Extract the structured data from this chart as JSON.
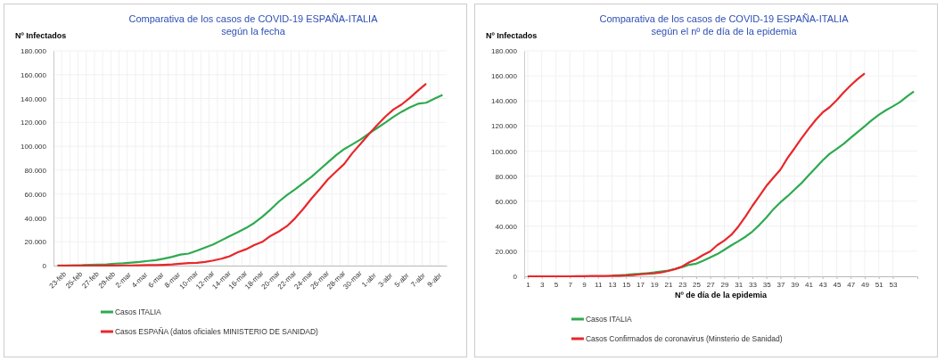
{
  "chart_data": [
    {
      "type": "line",
      "title": "Comparativa de los casos de COVID-19 ESPAÑA-ITALIA",
      "subtitle": "según la fecha",
      "ylabel": "Nº Infectados",
      "categories": [
        "23-feb",
        null,
        "25-feb",
        null,
        "27-feb",
        null,
        "29-feb",
        null,
        "2-mar",
        null,
        "4-mar",
        null,
        "6-mar",
        null,
        "8-mar",
        null,
        "10-mar",
        null,
        "12-mar",
        null,
        "14-mar",
        null,
        "16-mar",
        null,
        "18-mar",
        null,
        "20-mar",
        null,
        "22-mar",
        null,
        "24-mar",
        null,
        "26-mar",
        null,
        "28-mar",
        null,
        "30-mar",
        null,
        "1-abr",
        null,
        "3-abr",
        null,
        "5-abr",
        null,
        "7-abr",
        null,
        "9-abr",
        null
      ],
      "series": [
        {
          "name": "Casos ITALIA",
          "color": "#2eaa4f",
          "values": [
            200,
            200,
            300,
            400,
            700,
            900,
            1100,
            1700,
            2000,
            2500,
            3100,
            3900,
            4600,
            5900,
            7400,
            9200,
            10100,
            12500,
            15100,
            17700,
            21200,
            24700,
            28000,
            31500,
            35700,
            41000,
            47000,
            53600,
            59100,
            63900,
            69200,
            74400,
            80500,
            86500,
            92500,
            97700,
            101700,
            105800,
            110600,
            115200,
            119800,
            124600,
            128900,
            132500,
            135600,
            136500,
            139800,
            143000
          ]
        },
        {
          "name": "Casos ESPAÑA (datos oficiales MINISTERIO DE SANIDAD)",
          "color": "#e8272a",
          "values": [
            0,
            0,
            0,
            0,
            0,
            0,
            100,
            100,
            200,
            200,
            300,
            400,
            500,
            700,
            1000,
            1600,
            2100,
            2300,
            3100,
            4300,
            5800,
            7800,
            11200,
            13700,
            17100,
            19900,
            24900,
            28600,
            33100,
            39700,
            47600,
            56200,
            64100,
            72200,
            78800,
            85200,
            94400,
            102100,
            110200,
            117700,
            124700,
            130800,
            135000,
            140500,
            146700,
            152400,
            null,
            null
          ]
        }
      ],
      "ylim": [
        0,
        180000
      ],
      "yticks": [
        0,
        {
          "value": 20000,
          "label": "20.000"
        },
        {
          "value": 40000,
          "label": "40.000"
        },
        {
          "value": 60000,
          "label": "60.000"
        },
        {
          "value": 80000,
          "label": "80.000"
        },
        {
          "value": 100000,
          "label": "100.000"
        },
        {
          "value": 120000,
          "label": "120.000"
        },
        {
          "value": 140000,
          "label": "140.000"
        },
        {
          "value": 160000,
          "label": "160.000"
        },
        {
          "value": 180000,
          "label": "180.000"
        }
      ],
      "grid": true,
      "legend": "bottom",
      "marker": "none",
      "line_style": "solid"
    },
    {
      "type": "line",
      "title": "Comparativa de los casos de COVID-19 ESPAÑA-ITALIA",
      "subtitle": "según el nº de día de la epidemia",
      "ylabel": "Nº Infectados",
      "xlabel": "Nº  de día de la epidemia",
      "series": [
        {
          "name": "Casos ITALIA",
          "color": "#2eaa4f",
          "x": [
            13,
            14,
            15,
            16,
            17,
            18,
            19,
            20,
            21,
            22,
            23,
            24,
            25,
            26,
            27,
            28,
            29,
            30,
            31,
            32,
            33,
            34,
            35,
            36,
            37,
            38,
            39,
            40,
            41,
            42,
            43,
            44,
            45,
            46,
            47,
            48,
            49,
            50,
            51,
            52,
            53,
            54,
            55,
            56
          ],
          "values": [
            700,
            900,
            1100,
            1700,
            2000,
            2500,
            3100,
            3900,
            4600,
            5900,
            7400,
            9200,
            10100,
            12500,
            15100,
            17700,
            21200,
            24700,
            28000,
            31500,
            35700,
            41000,
            47000,
            53600,
            59100,
            63900,
            69200,
            74400,
            80500,
            86500,
            92500,
            97700,
            101700,
            105800,
            110600,
            115200,
            119800,
            124600,
            128900,
            132500,
            135600,
            139000,
            143400,
            147500
          ]
        },
        {
          "name": "Casos Confirmados de coronavirus (Minsterio de Sanidad)",
          "color": "#e8272a",
          "x": [
            1,
            2,
            3,
            4,
            5,
            6,
            7,
            8,
            9,
            10,
            11,
            12,
            13,
            14,
            15,
            16,
            17,
            18,
            19,
            20,
            21,
            22,
            23,
            24,
            25,
            26,
            27,
            28,
            29,
            30,
            31,
            32,
            33,
            34,
            35,
            36,
            37,
            38,
            39,
            40,
            41,
            42,
            43,
            44,
            45,
            46,
            47,
            48,
            49
          ],
          "values": [
            0,
            0,
            0,
            0,
            0,
            0,
            0,
            100,
            100,
            200,
            200,
            300,
            400,
            500,
            700,
            1000,
            1600,
            2100,
            2300,
            3100,
            4300,
            5800,
            7800,
            11200,
            13700,
            17100,
            19900,
            24900,
            28600,
            33100,
            39700,
            47600,
            56200,
            64100,
            72200,
            78800,
            85200,
            94400,
            102100,
            110200,
            117700,
            124700,
            130800,
            135000,
            140500,
            146700,
            152400,
            157500,
            162000
          ]
        }
      ],
      "xlim": [
        0.5,
        56.5
      ],
      "xticks": [
        1,
        3,
        5,
        7,
        9,
        11,
        13,
        15,
        17,
        19,
        21,
        23,
        25,
        27,
        29,
        31,
        33,
        35,
        37,
        39,
        41,
        43,
        45,
        47,
        49,
        51,
        53
      ],
      "ylim": [
        0,
        180000
      ],
      "yticks": [
        0,
        {
          "value": 20000,
          "label": "20.000"
        },
        {
          "value": 40000,
          "label": "40.000"
        },
        {
          "value": 60000,
          "label": "60.000"
        },
        {
          "value": 80000,
          "label": "80.000"
        },
        {
          "value": 100000,
          "label": "100.000"
        },
        {
          "value": 120000,
          "label": "120.000"
        },
        {
          "value": 140000,
          "label": "140.000"
        },
        {
          "value": 160000,
          "label": "160.000"
        },
        {
          "value": 180000,
          "label": "180.000"
        }
      ],
      "grid": true,
      "legend": "bottom",
      "marker": "none",
      "line_style": "solid"
    }
  ]
}
